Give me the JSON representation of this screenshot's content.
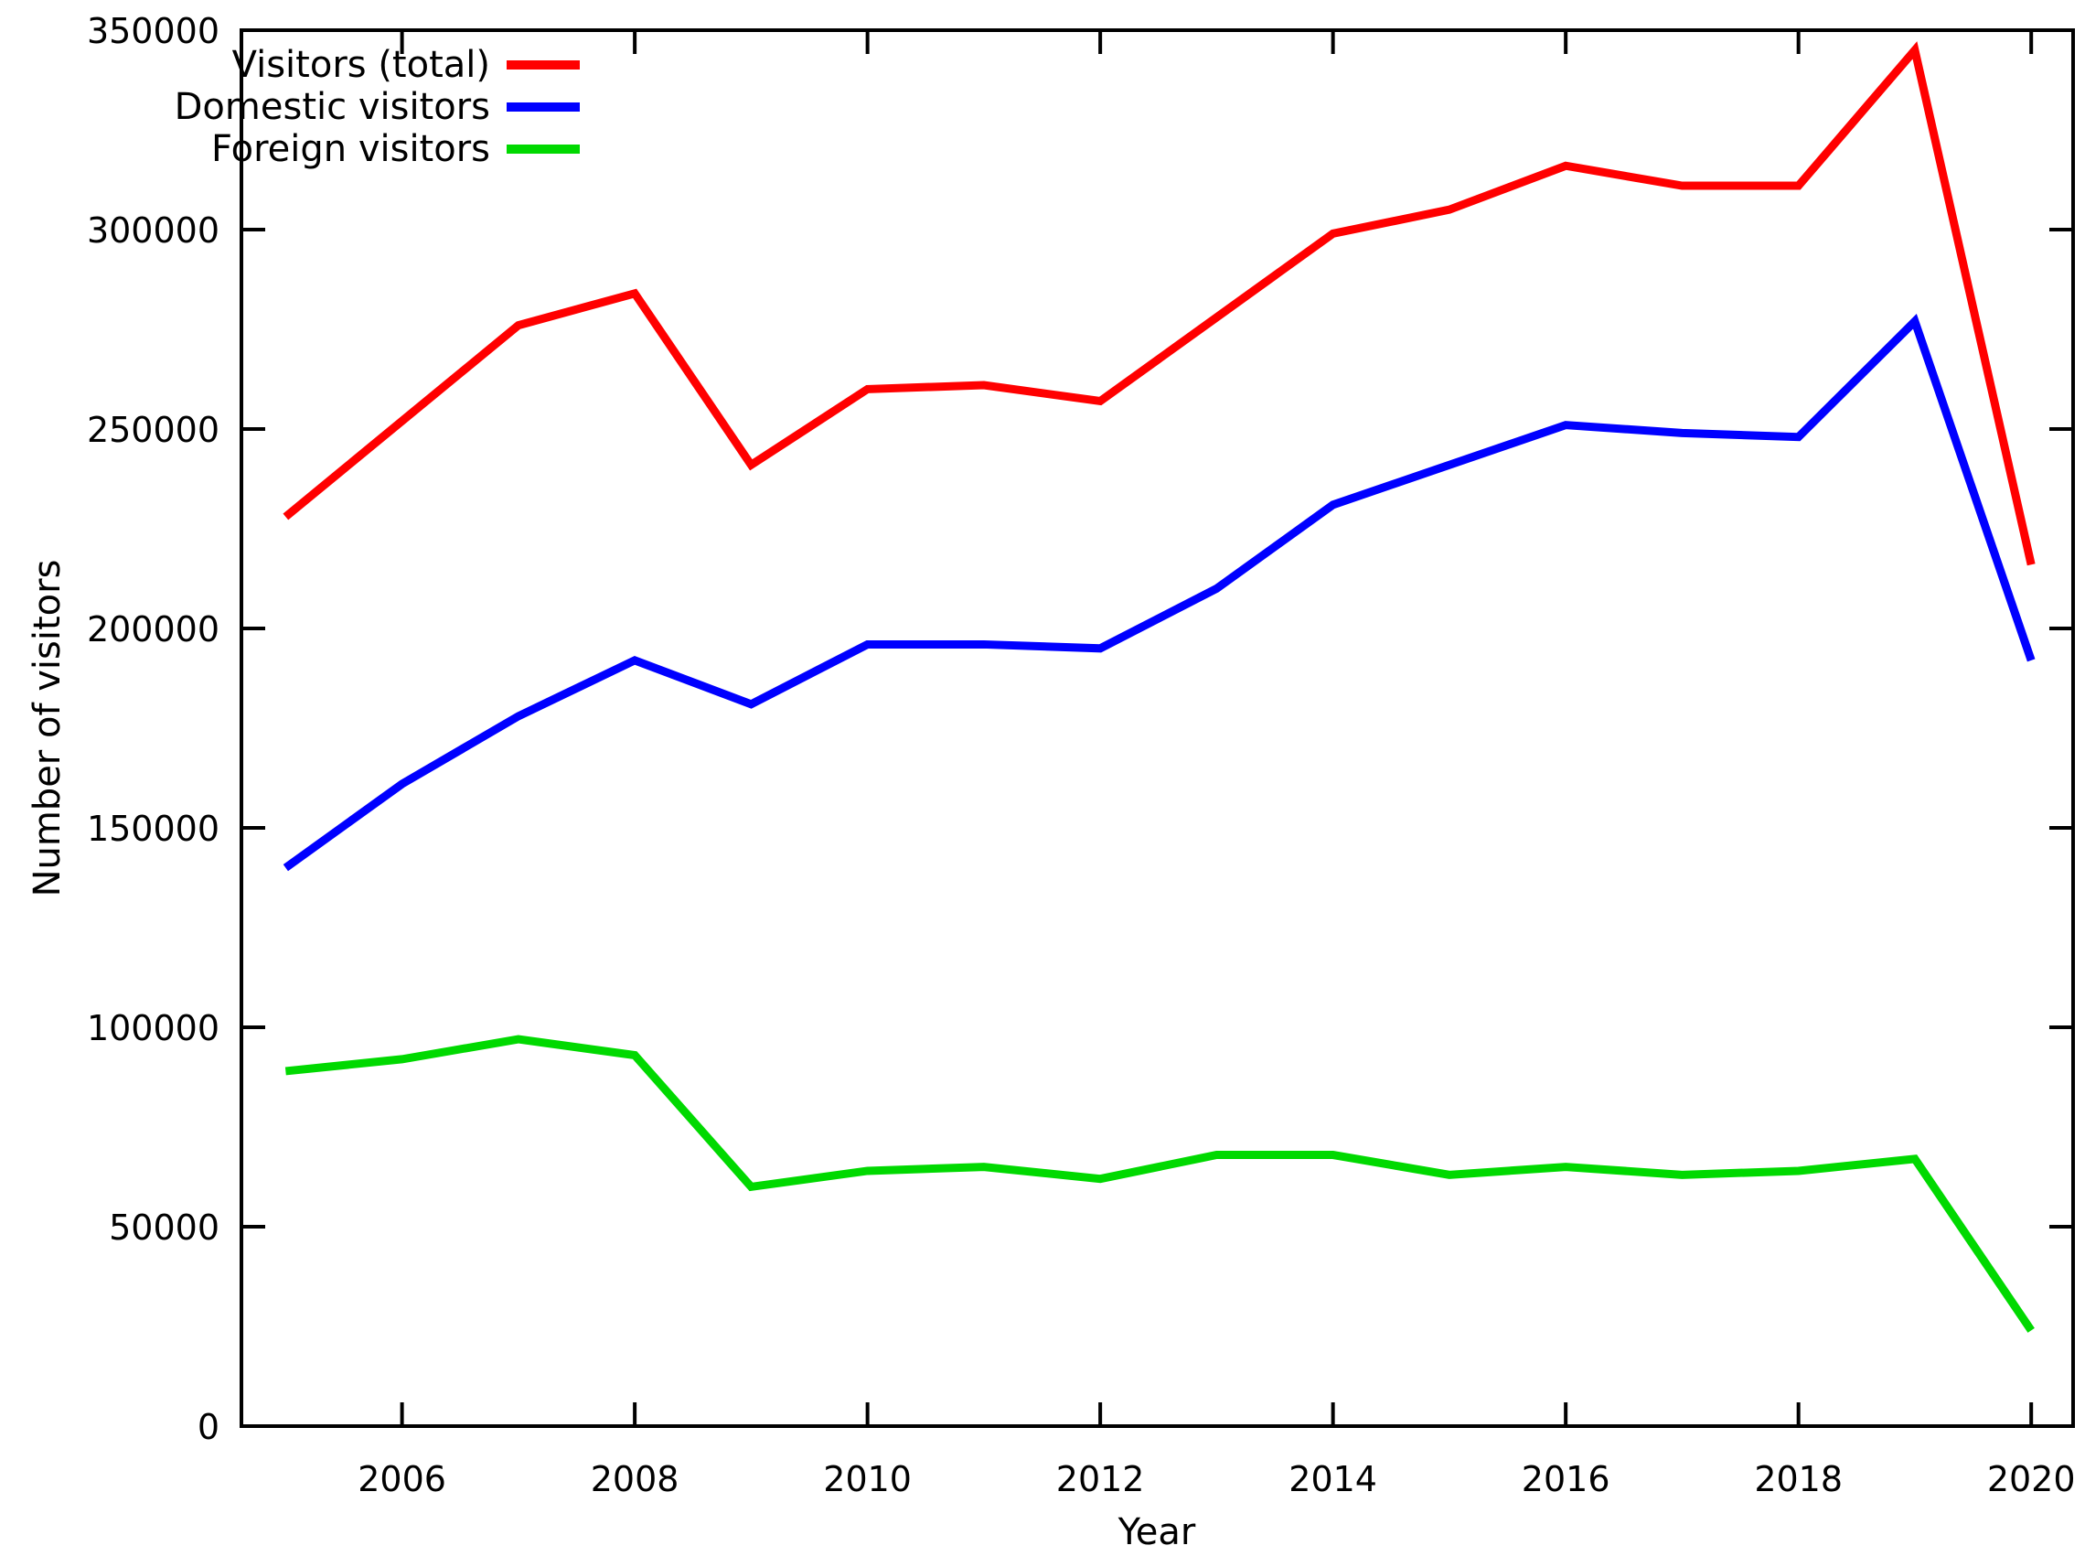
{
  "chart_data": {
    "type": "line",
    "title": "",
    "xlabel": "Year",
    "ylabel": "Number of visitors",
    "x": [
      2005,
      2006,
      2007,
      2008,
      2009,
      2010,
      2011,
      2012,
      2013,
      2014,
      2015,
      2016,
      2017,
      2018,
      2019,
      2020
    ],
    "series": [
      {
        "name": "Visitors (total)",
        "color": "#ff0000",
        "values": [
          228000,
          252000,
          276000,
          284000,
          241000,
          260000,
          261000,
          257000,
          278000,
          299000,
          305000,
          316000,
          311000,
          311000,
          345000,
          216000
        ]
      },
      {
        "name": "Domestic visitors",
        "color": "#0000ff",
        "values": [
          140000,
          161000,
          178000,
          192000,
          181000,
          196000,
          196000,
          195000,
          210000,
          231000,
          241000,
          251000,
          249000,
          248000,
          277000,
          192000
        ]
      },
      {
        "name": "Foreign visitors",
        "color": "#00d900",
        "values": [
          89000,
          92000,
          97000,
          93000,
          60000,
          64000,
          65000,
          62000,
          68000,
          68000,
          63000,
          65000,
          63000,
          64000,
          67000,
          24000
        ]
      }
    ],
    "ylim": [
      0,
      350000
    ],
    "yticks": [
      0,
      50000,
      100000,
      150000,
      200000,
      250000,
      300000,
      350000
    ],
    "xticks": [
      2006,
      2008,
      2010,
      2012,
      2014,
      2016,
      2018,
      2020
    ],
    "xlim": [
      2004.62,
      2020.36
    ],
    "grid": false,
    "legend_position": "top-left-inside",
    "background": "#ffffff",
    "axis_color": "#000000",
    "text_color": "#000000"
  }
}
